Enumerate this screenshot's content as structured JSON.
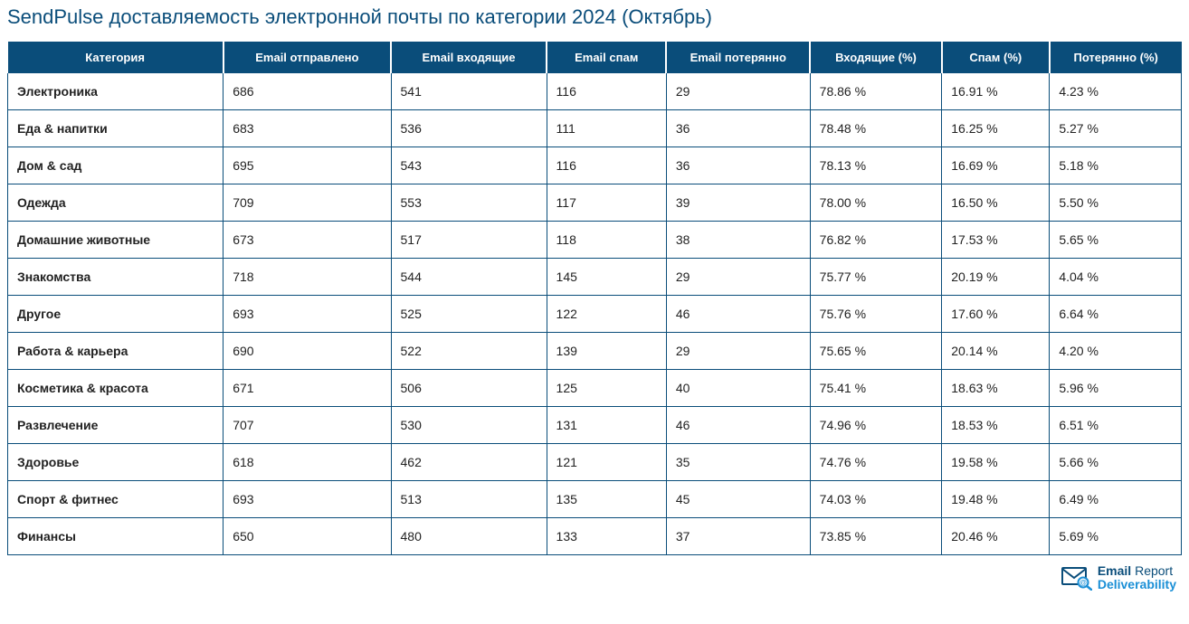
{
  "title": "SendPulse доставляемость электронной почты по категории 2024 (Октябрь)",
  "colors": {
    "header_bg": "#0a4d7a",
    "header_text": "#ffffff",
    "title_text": "#0a4d7a",
    "cell_text": "#222222",
    "border": "#0a4d7a",
    "logo_primary": "#0a4d7a",
    "logo_accent": "#1a8fd6"
  },
  "table": {
    "columns": [
      {
        "label": "Категория",
        "width": "18%"
      },
      {
        "label": "Email отправлено",
        "width": "14%"
      },
      {
        "label": "Email входящие",
        "width": "13%"
      },
      {
        "label": "Email спам",
        "width": "10%"
      },
      {
        "label": "Email потерянно",
        "width": "12%"
      },
      {
        "label": "Входящие (%)",
        "width": "11%"
      },
      {
        "label": "Спам (%)",
        "width": "9%"
      },
      {
        "label": "Потерянно (%)",
        "width": "11%"
      }
    ],
    "rows": [
      [
        "Электроника",
        "686",
        "541",
        "116",
        "29",
        "78.86 %",
        "16.91 %",
        "4.23 %"
      ],
      [
        "Еда & напитки",
        "683",
        "536",
        "111",
        "36",
        "78.48 %",
        "16.25 %",
        "5.27 %"
      ],
      [
        "Дом & сад",
        "695",
        "543",
        "116",
        "36",
        "78.13 %",
        "16.69 %",
        "5.18 %"
      ],
      [
        "Одежда",
        "709",
        "553",
        "117",
        "39",
        "78.00 %",
        "16.50 %",
        "5.50 %"
      ],
      [
        "Домашние животные",
        "673",
        "517",
        "118",
        "38",
        "76.82 %",
        "17.53 %",
        "5.65 %"
      ],
      [
        "Знакомства",
        "718",
        "544",
        "145",
        "29",
        "75.77 %",
        "20.19 %",
        "4.04 %"
      ],
      [
        "Другое",
        "693",
        "525",
        "122",
        "46",
        "75.76 %",
        "17.60 %",
        "6.64 %"
      ],
      [
        "Работа & карьера",
        "690",
        "522",
        "139",
        "29",
        "75.65 %",
        "20.14 %",
        "4.20 %"
      ],
      [
        "Косметика & красота",
        "671",
        "506",
        "125",
        "40",
        "75.41 %",
        "18.63 %",
        "5.96 %"
      ],
      [
        "Развлечение",
        "707",
        "530",
        "131",
        "46",
        "74.96 %",
        "18.53 %",
        "6.51 %"
      ],
      [
        "Здоровье",
        "618",
        "462",
        "121",
        "35",
        "74.76 %",
        "19.58 %",
        "5.66 %"
      ],
      [
        "Спорт & фитнес",
        "693",
        "513",
        "135",
        "45",
        "74.03 %",
        "19.48 %",
        "6.49 %"
      ],
      [
        "Финансы",
        "650",
        "480",
        "133",
        "37",
        "73.85 %",
        "20.46 %",
        "5.69 %"
      ]
    ]
  },
  "logo": {
    "line1_bold": "Email",
    "line1_normal": " Report",
    "line2": "Deliverability"
  }
}
